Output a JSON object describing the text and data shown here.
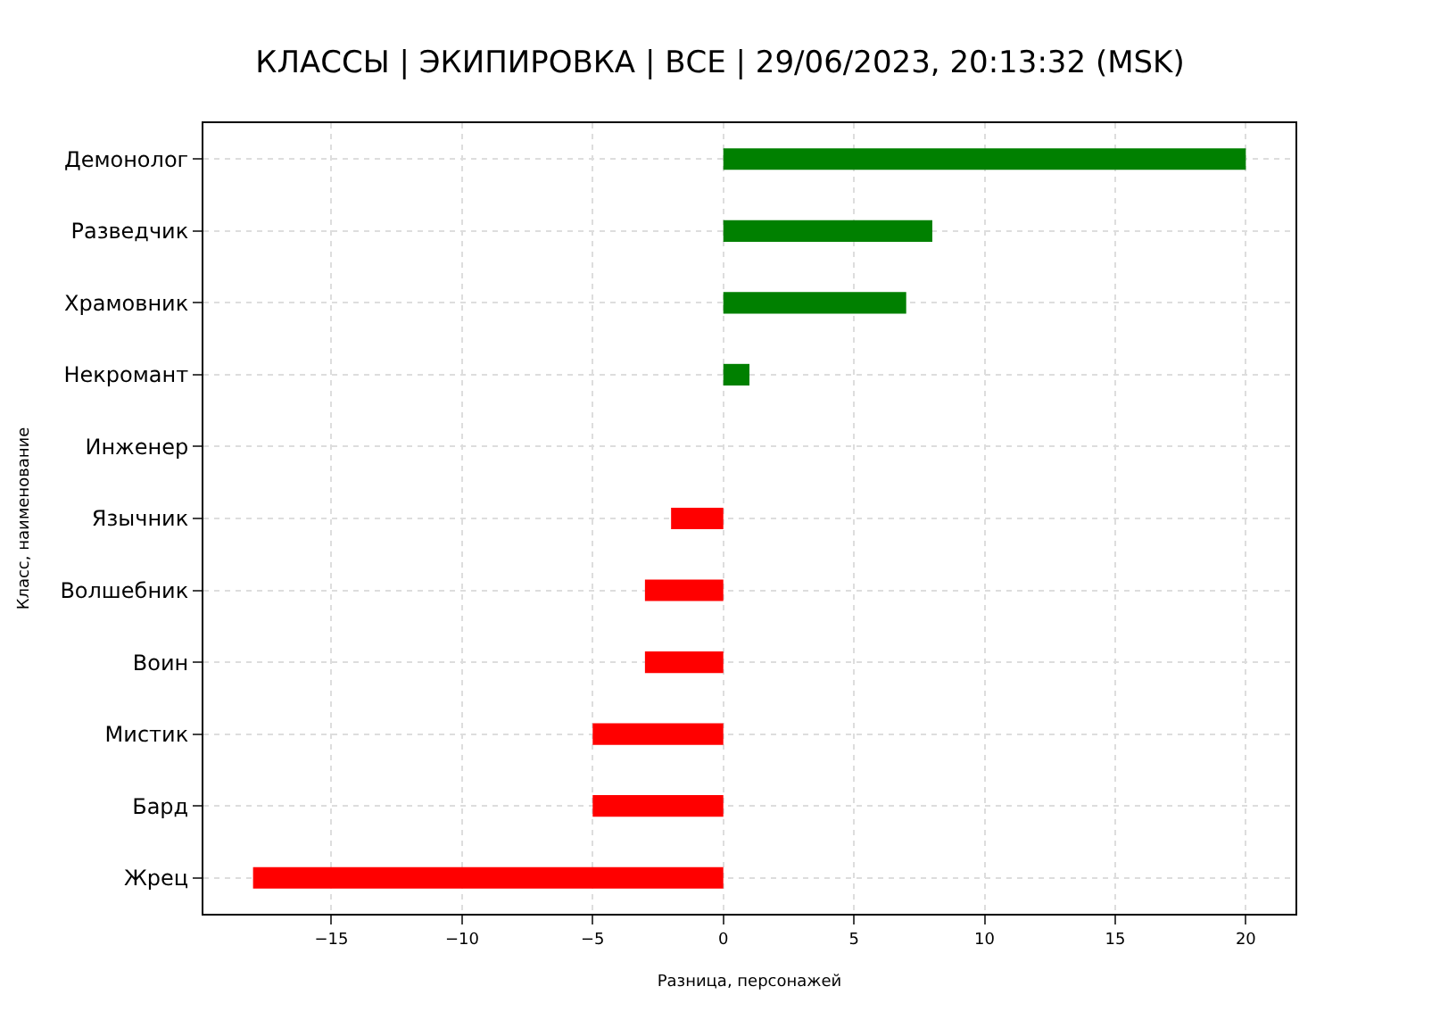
{
  "chart_data": {
    "type": "bar",
    "orientation": "horizontal",
    "title": "КЛАССЫ | ЭКИПИРОВКА | ВСЕ | 29/06/2023, 20:13:32 (MSK)",
    "xlabel": "Разница, персонажей",
    "ylabel": "Класс, наименование",
    "categories": [
      "Демонолог",
      "Разведчик",
      "Храмовник",
      "Некромант",
      "Инженер",
      "Язычник",
      "Волшебник",
      "Воин",
      "Мистик",
      "Бард",
      "Жрец"
    ],
    "values": [
      20,
      8,
      7,
      1,
      0,
      -2,
      -3,
      -3,
      -5,
      -5,
      -18
    ],
    "colors": [
      "#008000",
      "#008000",
      "#008000",
      "#008000",
      "#008000",
      "#ff0000",
      "#ff0000",
      "#ff0000",
      "#ff0000",
      "#ff0000",
      "#ff0000"
    ],
    "xlim": [
      -19.9,
      21.9
    ],
    "xticks": [
      {
        "value": -15,
        "label": "−15"
      },
      {
        "value": -10,
        "label": "−10"
      },
      {
        "value": -5,
        "label": "−5"
      },
      0,
      5,
      10,
      15,
      20
    ],
    "grid": true
  }
}
